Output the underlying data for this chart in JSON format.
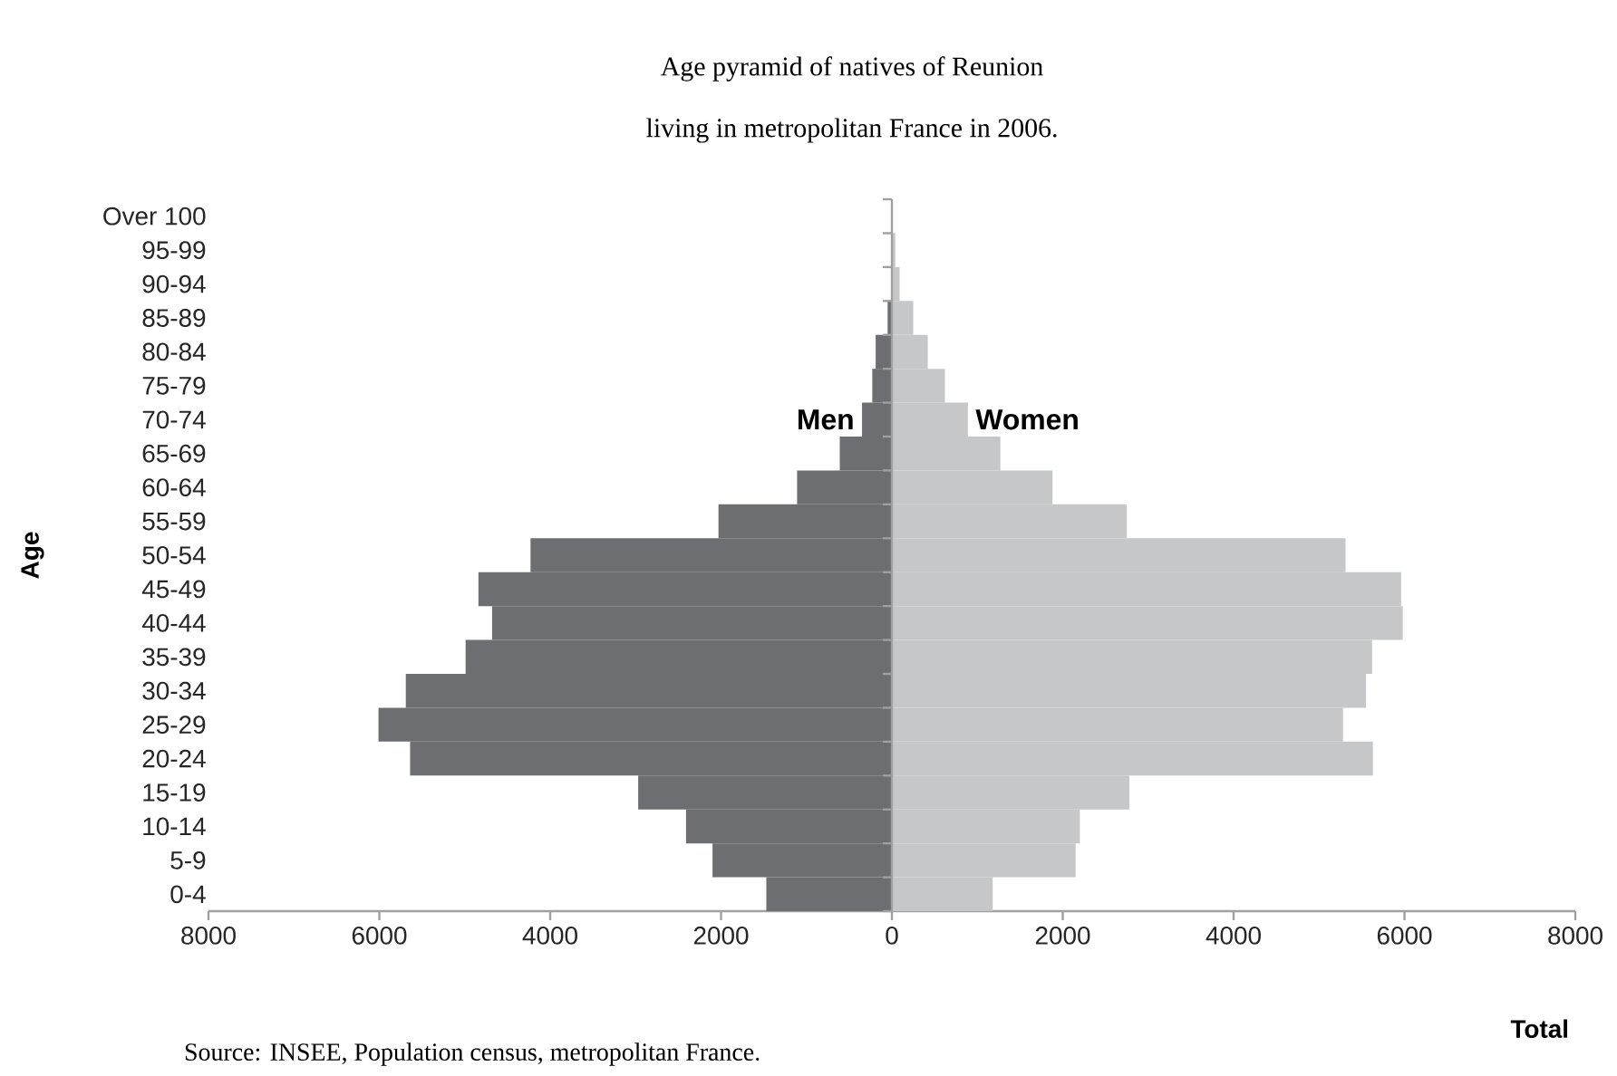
{
  "chart_data": {
    "type": "bar",
    "orientation": "horizontal",
    "stacked": true,
    "title": "Age pyramid of natives of Reunion",
    "subtitle": "living in metropolitan France in 2006.",
    "xlabel": "Total",
    "ylabel": "Age",
    "categories": [
      "Over 100",
      "95-99",
      "90-94",
      "85-89",
      "80-84",
      "75-79",
      "70-74",
      "65-69",
      "60-64",
      "55-59",
      "50-54",
      "45-49",
      "40-44",
      "35-39",
      "30-34",
      "25-29",
      "20-24",
      "15-19",
      "10-14",
      "5-9",
      "0-4"
    ],
    "series": [
      {
        "name": "Men",
        "color": "#6d6e71",
        "values": [
          0,
          0,
          -10,
          -50,
          -190,
          -230,
          -350,
          -610,
          -1110,
          -2030,
          -4230,
          -4840,
          -4680,
          -4990,
          -5690,
          -6010,
          -5640,
          -2970,
          -2410,
          -2100,
          -1470
        ]
      },
      {
        "name": "Women",
        "color": "#c6c7c9",
        "values": [
          0,
          40,
          90,
          250,
          420,
          620,
          890,
          1270,
          1880,
          2750,
          5310,
          5960,
          5980,
          5620,
          5550,
          5280,
          5630,
          2780,
          2200,
          2150,
          1180
        ]
      }
    ],
    "xlim": [
      -8000,
      8000
    ],
    "xticks": [
      {
        "value": -8000,
        "label": "8000"
      },
      {
        "value": -6000,
        "label": "6000"
      },
      {
        "value": -4000,
        "label": "4000"
      },
      {
        "value": -2000,
        "label": "2000"
      },
      0,
      2000,
      4000,
      6000,
      8000
    ],
    "legend": false,
    "annotations": [
      "Source: INSEE, Population census, metropolitan France."
    ]
  }
}
